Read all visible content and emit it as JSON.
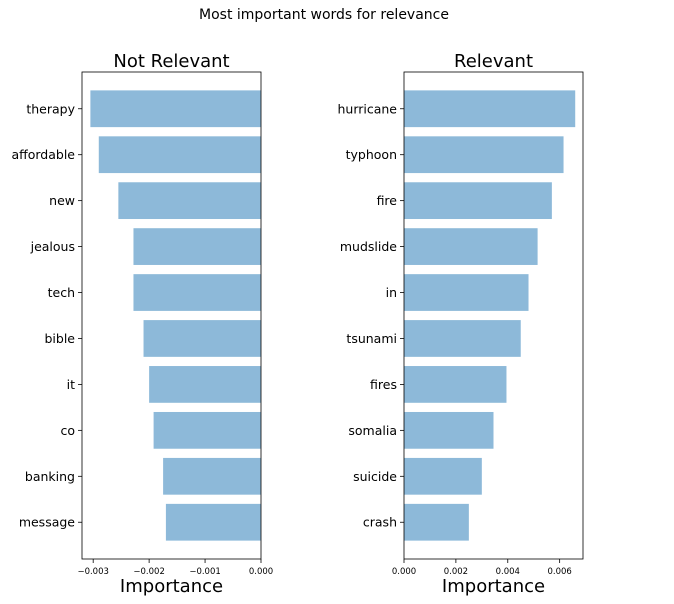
{
  "figure_title": "Most important words for relevance",
  "chart_data": [
    {
      "type": "bar",
      "orientation": "horizontal",
      "title": "Not Relevant",
      "xlabel": "Importance",
      "ylabel": "",
      "categories": [
        "therapy",
        "affordable",
        "new",
        "jealous",
        "tech",
        "bible",
        "it",
        "co",
        "banking",
        "message"
      ],
      "values": [
        -0.00305,
        -0.0029,
        -0.00255,
        -0.00228,
        -0.00228,
        -0.0021,
        -0.002,
        -0.00192,
        -0.00175,
        -0.0017
      ],
      "xlim": [
        -0.0032,
        0.0
      ],
      "xticks": [
        -0.003,
        -0.002,
        -0.001,
        0.0
      ],
      "xtick_labels": [
        "−0.003",
        "−0.002",
        "−0.001",
        "0.000"
      ],
      "bar_color": "#8db9d9",
      "grid": false
    },
    {
      "type": "bar",
      "orientation": "horizontal",
      "title": "Relevant",
      "xlabel": "Importance",
      "ylabel": "",
      "categories": [
        "hurricane",
        "typhoon",
        "fire",
        "mudslide",
        "in",
        "tsunami",
        "fires",
        "somalia",
        "suicide",
        "crash"
      ],
      "values": [
        0.0066,
        0.00615,
        0.0057,
        0.00515,
        0.0048,
        0.0045,
        0.00395,
        0.00345,
        0.003,
        0.0025
      ],
      "xlim": [
        0.0,
        0.0069
      ],
      "xticks": [
        0.0,
        0.002,
        0.004,
        0.006
      ],
      "xtick_labels": [
        "0.000",
        "0.002",
        "0.004",
        "0.006"
      ],
      "bar_color": "#8db9d9",
      "grid": false
    }
  ]
}
